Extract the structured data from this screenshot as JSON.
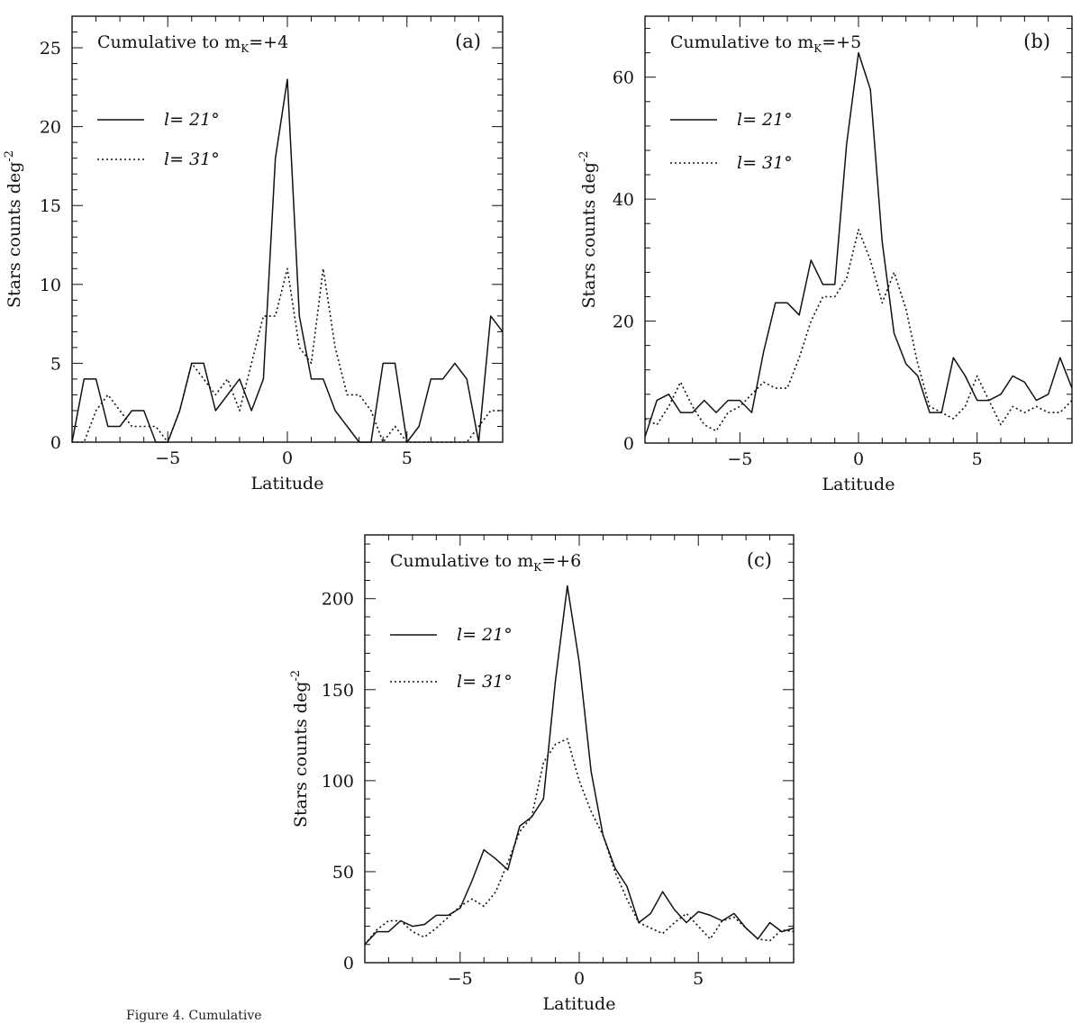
{
  "figure_caption": "Figure 4. Cumulative",
  "chart_data": [
    {
      "type": "line",
      "panel_label": "(a)",
      "title_text": "Cumulative to m",
      "title_sub": "K",
      "title_suffix": "=+4",
      "xlabel": "Latitude",
      "ylabel": "Stars counts deg",
      "ylabel_sup": "-2",
      "xlim": [
        -9,
        9
      ],
      "ylim": [
        0,
        27
      ],
      "xticks": [
        -5,
        0,
        5
      ],
      "yticks": [
        0,
        5,
        10,
        15,
        20,
        25
      ],
      "legend_loc": "upper-left",
      "series": [
        {
          "name": "l= 21°",
          "style": "solid",
          "x": [
            -9,
            -8.5,
            -8,
            -7.5,
            -7,
            -6.5,
            -6,
            -5.5,
            -5,
            -4.5,
            -4,
            -3.5,
            -3,
            -2.5,
            -2,
            -1.5,
            -1,
            -0.5,
            0,
            0.5,
            1,
            1.5,
            2,
            2.5,
            3,
            3.5,
            4,
            4.5,
            5,
            5.5,
            6,
            6.5,
            7,
            7.5,
            8,
            8.5,
            9
          ],
          "y": [
            0,
            4,
            4,
            1,
            1,
            2,
            2,
            0,
            0,
            2,
            5,
            5,
            2,
            3,
            4,
            2,
            4,
            18,
            23,
            8,
            4,
            4,
            2,
            1,
            0,
            0,
            5,
            5,
            0,
            1,
            4,
            4,
            5,
            4,
            0,
            8,
            7
          ]
        },
        {
          "name": "l= 31°",
          "style": "dotted",
          "x": [
            -9,
            -8.5,
            -8,
            -7.5,
            -7,
            -6.5,
            -6,
            -5.5,
            -5,
            -4.5,
            -4,
            -3.5,
            -3,
            -2.5,
            -2,
            -1.5,
            -1,
            -0.5,
            0,
            0.5,
            1,
            1.5,
            2,
            2.5,
            3,
            3.5,
            4,
            4.5,
            5,
            5.5,
            6,
            6.5,
            7,
            7.5,
            8,
            8.5,
            9
          ],
          "y": [
            0,
            0,
            2,
            3,
            2,
            1,
            1,
            1,
            0,
            2,
            5,
            4,
            3,
            4,
            2,
            5,
            8,
            8,
            11,
            6,
            5,
            11,
            6,
            3,
            3,
            2,
            0,
            1,
            0,
            0,
            0,
            0,
            0,
            0,
            1,
            2,
            2
          ]
        }
      ]
    },
    {
      "type": "line",
      "panel_label": "(b)",
      "title_text": "Cumulative to m",
      "title_sub": "K",
      "title_suffix": "=+5",
      "xlabel": "Latitude",
      "ylabel": "Stars counts deg",
      "ylabel_sup": "-2",
      "xlim": [
        -9,
        9
      ],
      "ylim": [
        0,
        70
      ],
      "xticks": [
        -5,
        0,
        5
      ],
      "yticks": [
        0,
        20,
        40,
        60
      ],
      "legend_loc": "upper-left",
      "series": [
        {
          "name": "l= 21°",
          "style": "solid",
          "x": [
            -9,
            -8.5,
            -8,
            -7.5,
            -7,
            -6.5,
            -6,
            -5.5,
            -5,
            -4.5,
            -4,
            -3.5,
            -3,
            -2.5,
            -2,
            -1.5,
            -1,
            -0.5,
            0,
            0.5,
            1,
            1.5,
            2,
            2.5,
            3,
            3.5,
            4,
            4.5,
            5,
            5.5,
            6,
            6.5,
            7,
            7.5,
            8,
            8.5,
            9
          ],
          "y": [
            1,
            7,
            8,
            5,
            5,
            7,
            5,
            7,
            7,
            5,
            15,
            23,
            23,
            21,
            30,
            26,
            26,
            49,
            64,
            58,
            33,
            18,
            13,
            11,
            5,
            5,
            14,
            11,
            7,
            7,
            8,
            11,
            10,
            7,
            8,
            14,
            9
          ]
        },
        {
          "name": "l= 31°",
          "style": "dotted",
          "x": [
            -9,
            -8.5,
            -8,
            -7.5,
            -7,
            -6.5,
            -6,
            -5.5,
            -5,
            -4.5,
            -4,
            -3.5,
            -3,
            -2.5,
            -2,
            -1.5,
            -1,
            -0.5,
            0,
            0.5,
            1,
            1.5,
            2,
            2.5,
            3,
            3.5,
            4,
            4.5,
            5,
            5.5,
            6,
            6.5,
            7,
            7.5,
            8,
            8.5,
            9
          ],
          "y": [
            4,
            3,
            6,
            10,
            6,
            3,
            2,
            5,
            6,
            8,
            10,
            9,
            9,
            14,
            20,
            24,
            24,
            27,
            35,
            30,
            23,
            28,
            22,
            13,
            6,
            5,
            4,
            6,
            11,
            7,
            3,
            6,
            5,
            6,
            5,
            5,
            7
          ]
        }
      ]
    },
    {
      "type": "line",
      "panel_label": "(c)",
      "title_text": "Cumulative to m",
      "title_sub": "K",
      "title_suffix": "=+6",
      "xlabel": "Latitude",
      "ylabel": "Stars counts deg",
      "ylabel_sup": "-2",
      "xlim": [
        -9,
        9
      ],
      "ylim": [
        0,
        235
      ],
      "xticks": [
        -5,
        0,
        5
      ],
      "yticks": [
        0,
        50,
        100,
        150,
        200
      ],
      "legend_loc": "upper-left",
      "series": [
        {
          "name": "l= 21°",
          "style": "solid",
          "x": [
            -9,
            -8.5,
            -8,
            -7.5,
            -7,
            -6.5,
            -6,
            -5.5,
            -5,
            -4.5,
            -4,
            -3.5,
            -3,
            -2.5,
            -2,
            -1.5,
            -1,
            -0.5,
            0,
            0.5,
            1,
            1.5,
            2,
            2.5,
            3,
            3.5,
            4,
            4.5,
            5,
            5.5,
            6,
            6.5,
            7,
            7.5,
            8,
            8.5,
            9
          ],
          "y": [
            10,
            17,
            17,
            23,
            20,
            21,
            26,
            26,
            30,
            45,
            62,
            57,
            51,
            75,
            80,
            90,
            155,
            207,
            165,
            105,
            70,
            52,
            42,
            22,
            27,
            39,
            29,
            22,
            28,
            26,
            23,
            27,
            19,
            13,
            22,
            17,
            19
          ]
        },
        {
          "name": "l= 31°",
          "style": "dotted",
          "x": [
            -9,
            -8.5,
            -8,
            -7.5,
            -7,
            -6.5,
            -6,
            -5.5,
            -5,
            -4.5,
            -4,
            -3.5,
            -3,
            -2.5,
            -2,
            -1.5,
            -1,
            -0.5,
            0,
            0.5,
            1,
            1.5,
            2,
            2.5,
            3,
            3.5,
            4,
            4.5,
            5,
            5.5,
            6,
            6.5,
            7,
            7.5,
            8,
            8.5,
            9
          ],
          "y": [
            10,
            18,
            23,
            23,
            17,
            14,
            19,
            25,
            31,
            35,
            31,
            39,
            55,
            72,
            80,
            110,
            120,
            123,
            100,
            83,
            70,
            50,
            35,
            22,
            19,
            16,
            22,
            27,
            20,
            13,
            23,
            25,
            19,
            13,
            12,
            18,
            17
          ]
        }
      ]
    }
  ]
}
